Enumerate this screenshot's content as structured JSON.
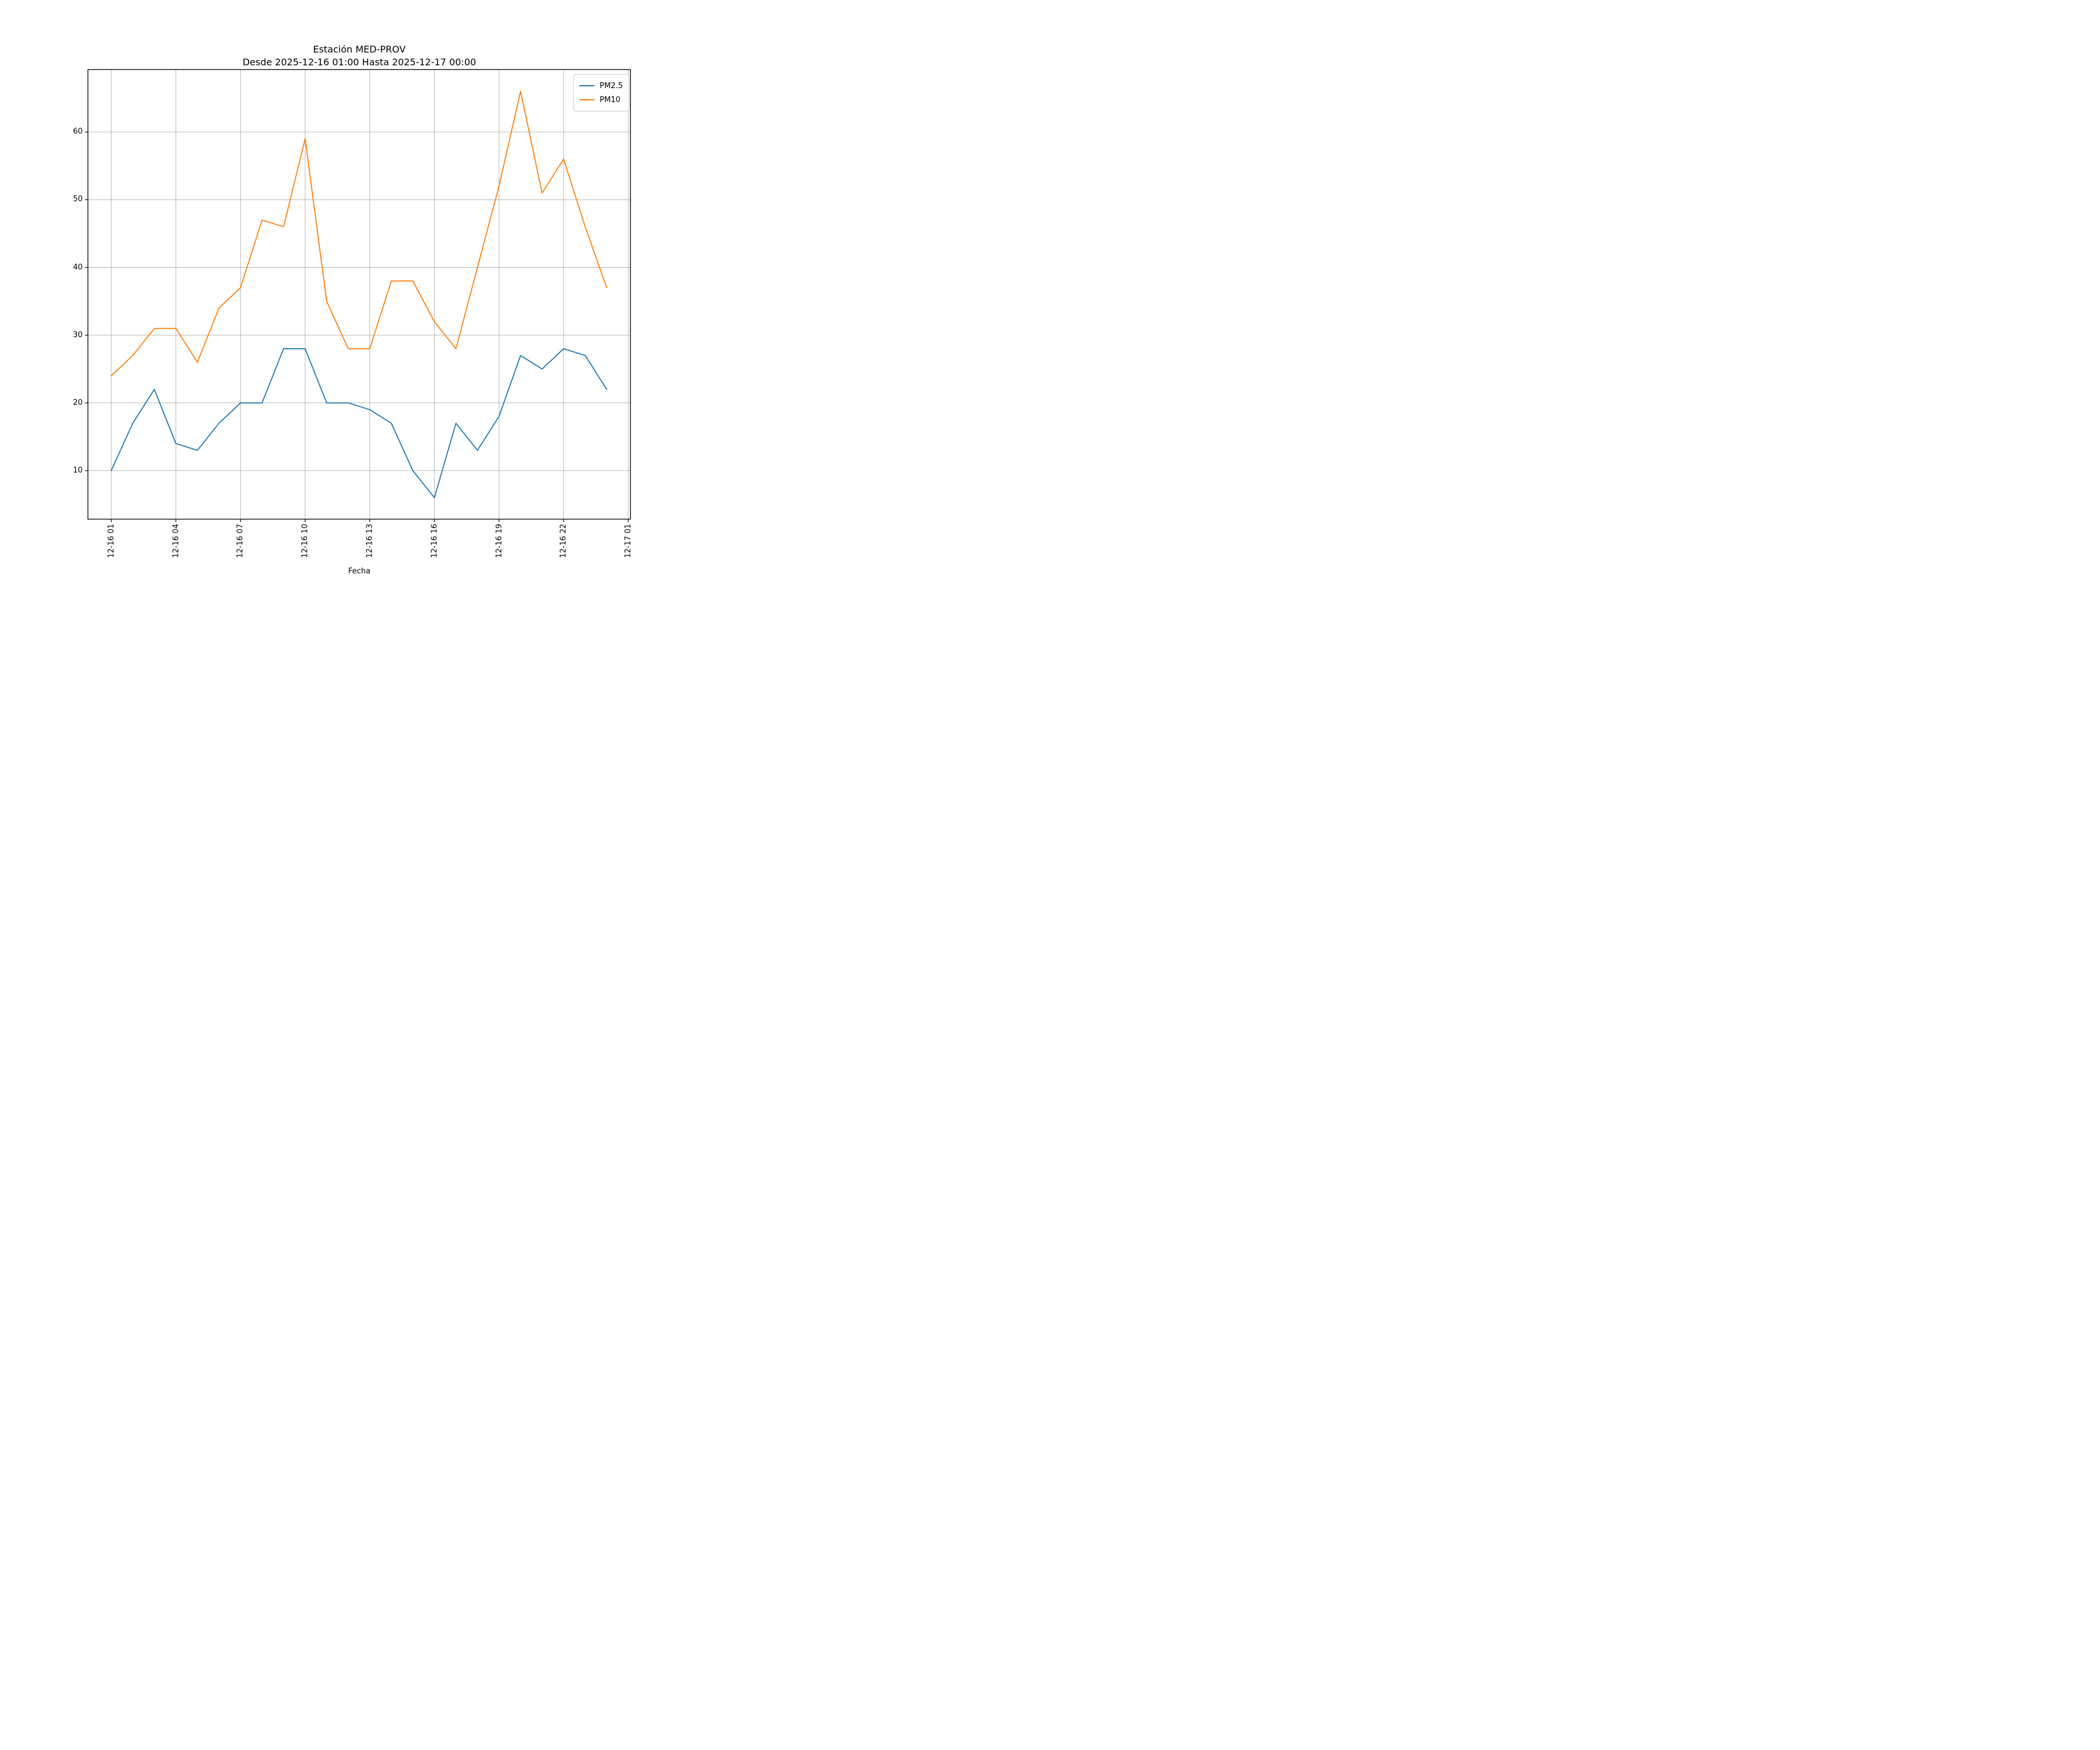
{
  "title": {
    "line1": "Estación MED-PROV",
    "line2": "Desde 2025-12-16 01:00 Hasta 2025-12-17 00:00"
  },
  "axes": {
    "xlabel": "Fecha",
    "x_tick_labels": [
      "12-16 01",
      "12-16 04",
      "12-16 07",
      "12-16 10",
      "12-16 13",
      "12-16 16",
      "12-16 19",
      "12-16 22",
      "12-17 01"
    ],
    "x_tick_hours": [
      1,
      4,
      7,
      10,
      13,
      16,
      19,
      22,
      25
    ],
    "y_tick_labels": [
      "10",
      "20",
      "30",
      "40",
      "50",
      "60"
    ],
    "y_tick_values": [
      10,
      20,
      30,
      40,
      50,
      60
    ]
  },
  "legend": [
    {
      "label": "PM2.5",
      "color": "#1f77b4"
    },
    {
      "label": "PM10",
      "color": "#ff7f0e"
    }
  ],
  "colors": {
    "pm25": "#1f77b4",
    "pm10": "#ff7f0e",
    "grid": "#b0b0b0",
    "spine": "#000000"
  },
  "chart_data": {
    "type": "line",
    "title": "Estación MED-PROV\nDesde 2025-12-16 01:00 Hasta 2025-12-17 00:00",
    "xlabel": "Fecha",
    "ylabel": "",
    "x_hour_index": [
      1,
      2,
      3,
      4,
      5,
      6,
      7,
      8,
      9,
      10,
      11,
      12,
      13,
      14,
      15,
      16,
      17,
      18,
      19,
      20,
      21,
      22,
      23,
      24
    ],
    "series": [
      {
        "name": "PM2.5",
        "color": "#1f77b4",
        "values": [
          10,
          17,
          22,
          14,
          13,
          17,
          20,
          20,
          28,
          28,
          20,
          20,
          19,
          17,
          10,
          6,
          17,
          13,
          18,
          27,
          25,
          28,
          27,
          22
        ]
      },
      {
        "name": "PM10",
        "color": "#ff7f0e",
        "values": [
          24,
          27,
          31,
          31,
          26,
          34,
          37,
          47,
          46,
          59,
          35,
          28,
          28,
          38,
          38,
          32,
          28,
          40,
          52,
          66,
          51,
          56,
          46,
          37
        ]
      }
    ],
    "x_tick_labels": [
      "12-16 01",
      "12-16 04",
      "12-16 07",
      "12-16 10",
      "12-16 13",
      "12-16 16",
      "12-16 19",
      "12-16 22",
      "12-17 01"
    ],
    "x_tick_hours": [
      1,
      4,
      7,
      10,
      13,
      16,
      19,
      22,
      25
    ],
    "ylim": [
      2.85,
      69.15
    ],
    "yticks": [
      10,
      20,
      30,
      40,
      50,
      60
    ],
    "grid": true,
    "legend_position": "upper right"
  }
}
